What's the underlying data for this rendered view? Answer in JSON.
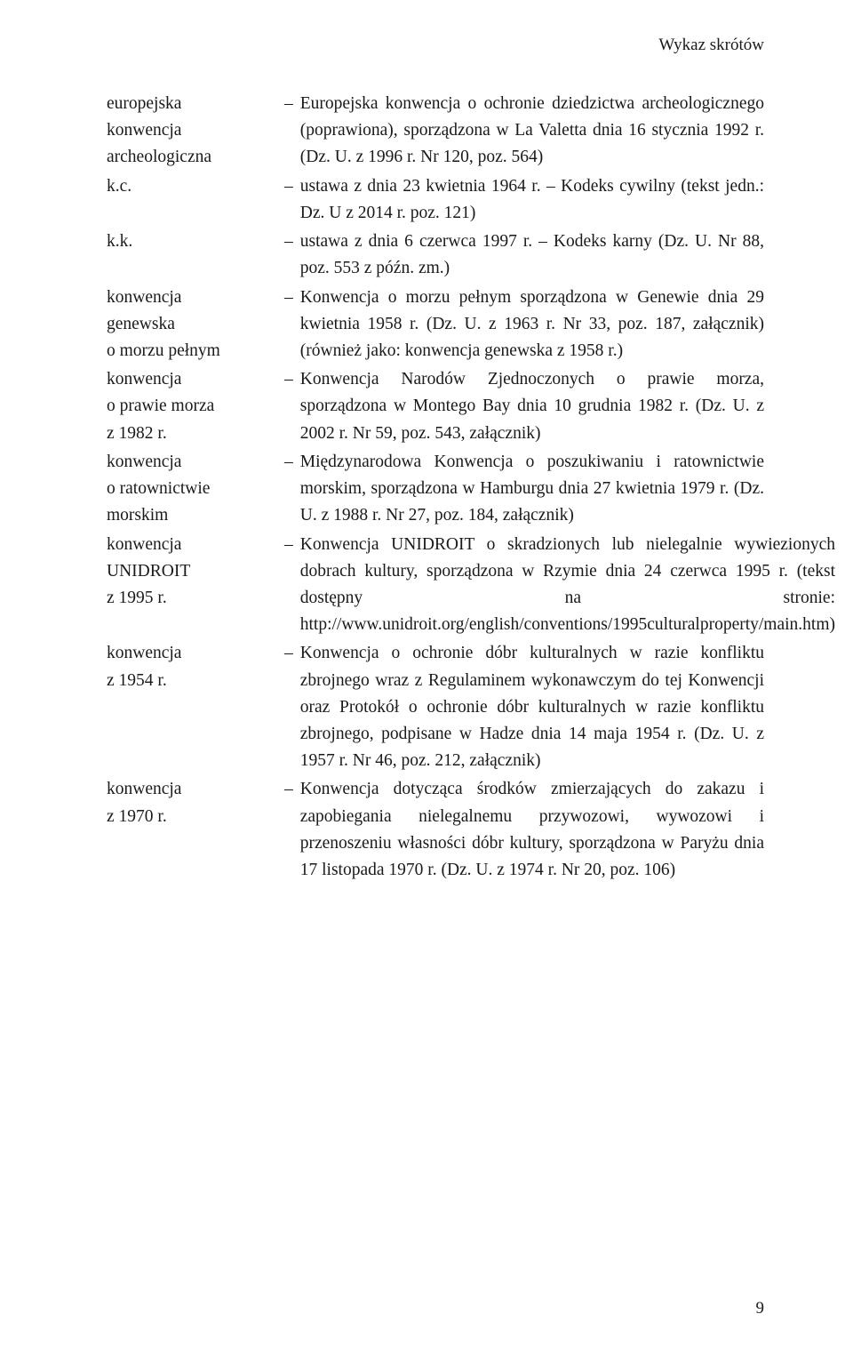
{
  "runningHeader": "Wykaz skrótów",
  "pageNumber": "9",
  "entries": [
    {
      "termLines": [
        "europejska",
        "konwencja",
        "archeologiczna"
      ],
      "def": "Europejska konwencja o ochronie dziedzictwa archeologicznego (poprawiona), sporządzona w La Valetta dnia 16 stycznia 1992 r. (Dz. U. z 1996 r. Nr 120, poz. 564)"
    },
    {
      "termLines": [
        "k.c."
      ],
      "def": "ustawa z dnia 23 kwietnia 1964 r. – Kodeks cywilny (tekst jedn.: Dz. U z 2014 r. poz. 121)"
    },
    {
      "termLines": [
        "k.k."
      ],
      "def": "ustawa z dnia 6 czerwca 1997 r. – Kodeks karny (Dz. U. Nr 88, poz. 553 z późn. zm.)"
    },
    {
      "termLines": [
        "konwencja",
        "genewska",
        "o morzu pełnym"
      ],
      "def": "Konwencja o morzu pełnym sporządzona w Genewie dnia 29 kwietnia 1958 r. (Dz. U. z 1963 r. Nr 33, poz. 187, załącznik) (również jako: konwencja genewska z 1958 r.)"
    },
    {
      "termLines": [
        "konwencja",
        "o prawie morza",
        "z 1982 r."
      ],
      "def": "Konwencja Narodów Zjednoczonych o prawie morza, sporządzona w Montego Bay dnia 10 grudnia 1982 r. (Dz. U. z 2002 r. Nr 59, poz. 543, załącznik)"
    },
    {
      "termLines": [
        "konwencja",
        "o ratownictwie",
        "morskim"
      ],
      "def": "Międzynarodowa Konwencja o poszukiwaniu i ratownictwie morskim, sporządzona w Hamburgu dnia 27 kwietnia 1979 r. (Dz. U. z 1988 r. Nr 27, poz. 184, załącznik)"
    },
    {
      "termLines": [
        "konwencja",
        "UNIDROIT",
        "z 1995 r."
      ],
      "def": "Konwencja UNIDROIT o skradzionych lub nielegalnie wywiezionych dobrach kultury, sporządzona w Rzymie dnia 24 czerwca 1995 r. (tekst dostępny na stronie: http://www.unidroit.org/english/conventions/1995culturalproperty/main.htm)"
    },
    {
      "termLines": [
        "konwencja",
        "z 1954 r."
      ],
      "def": "Konwencja o ochronie dóbr kulturalnych w razie konfliktu zbrojnego wraz z Regulaminem wykonawczym do tej Konwencji oraz Protokół o ochronie dóbr kulturalnych w razie konfliktu zbrojnego, podpisane w Hadze dnia 14 maja 1954 r. (Dz. U. z 1957 r. Nr 46, poz. 212, załącznik)"
    },
    {
      "termLines": [
        "konwencja",
        "z 1970 r."
      ],
      "def": "Konwencja dotycząca środków zmierzających do zakazu i zapobiegania nielegalnemu przywozowi, wywozowi i przenoszeniu własności dóbr kultury, sporządzona w Paryżu dnia 17 listopada 1970 r. (Dz. U. z 1974 r. Nr 20, poz. 106)"
    }
  ]
}
